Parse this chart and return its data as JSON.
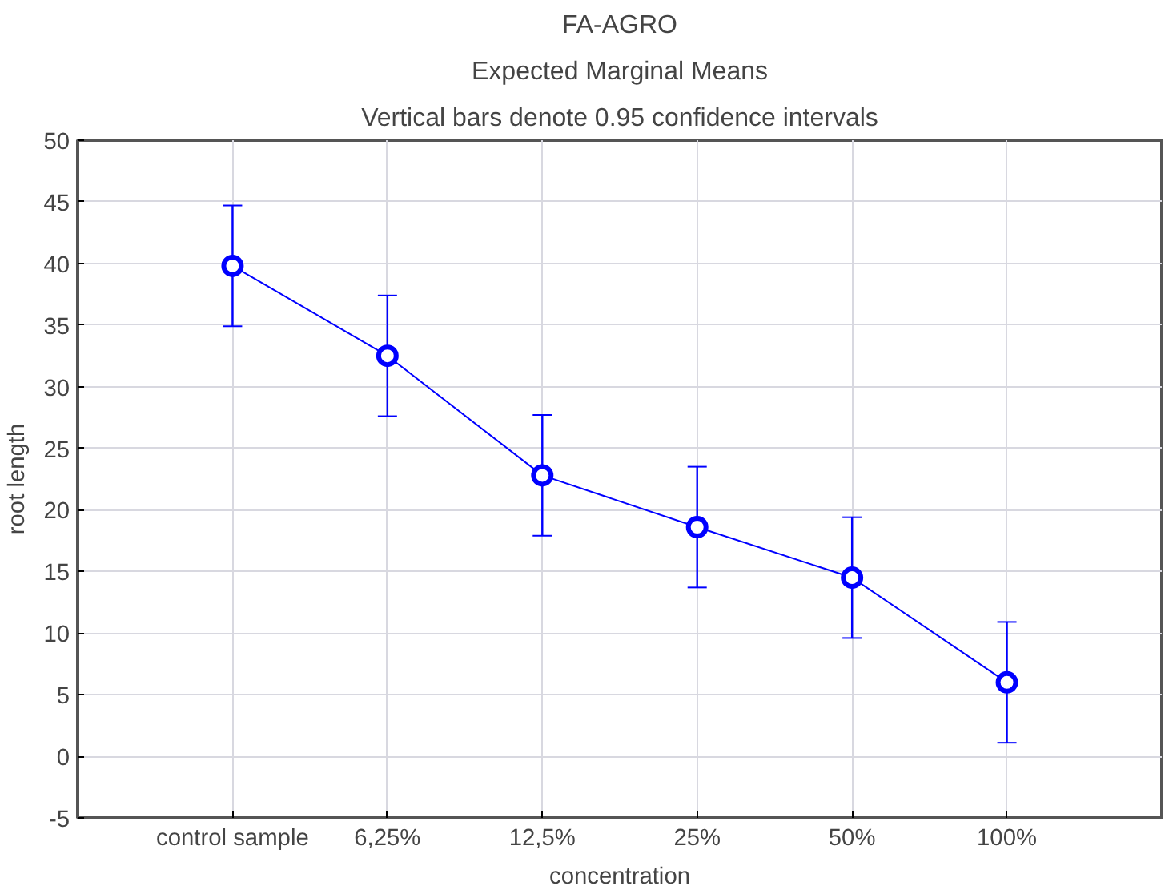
{
  "chart_data": {
    "type": "line",
    "title": "FA-AGRO",
    "subtitle": "Expected Marginal Means",
    "annotations": [
      "Vertical bars denote 0.95 confidence intervals"
    ],
    "xlabel": "concentration",
    "ylabel": "root length",
    "categories": [
      "control sample",
      "6,25%",
      "12,5%",
      "25%",
      "50%",
      "100%"
    ],
    "series": [
      {
        "color": "#0000ff",
        "values": [
          39.8,
          32.5,
          22.8,
          18.6,
          14.5,
          6.0
        ],
        "errors": [
          4.9,
          4.9,
          4.9,
          4.9,
          4.9,
          4.9
        ]
      }
    ],
    "ylim": [
      -5,
      50
    ],
    "yticks": [
      -5,
      0,
      5,
      10,
      15,
      20,
      25,
      30,
      35,
      40,
      45,
      50
    ],
    "grid": true,
    "marker": "circle",
    "line_style": "solid"
  }
}
